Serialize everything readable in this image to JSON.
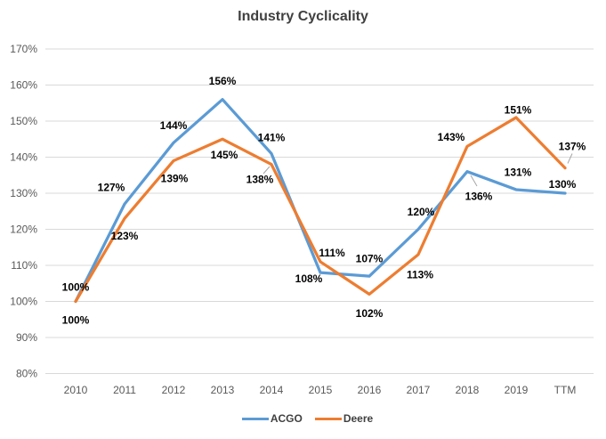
{
  "chart_data": {
    "type": "line",
    "title": "Industry Cyclicality",
    "categories": [
      "2010",
      "2011",
      "2012",
      "2013",
      "2014",
      "2015",
      "2016",
      "2017",
      "2018",
      "2019",
      "TTM"
    ],
    "series": [
      {
        "name": "ACGO",
        "color": "#5B9BD5",
        "values": [
          100,
          127,
          144,
          156,
          141,
          108,
          107,
          120,
          136,
          131,
          130
        ]
      },
      {
        "name": "Deere",
        "color": "#ED7D31",
        "values": [
          100,
          123,
          139,
          145,
          138,
          111,
          102,
          113,
          143,
          151,
          137
        ]
      }
    ],
    "ylim": [
      80,
      170
    ],
    "ytick_step": 10,
    "ytick_labels": [
      "170%",
      "160%",
      "150%",
      "140%",
      "130%",
      "120%",
      "110%",
      "100%",
      "90%",
      "80%"
    ],
    "tick_suffix": "%",
    "data_label_suffix": "%",
    "grid": true,
    "legend_position": "bottom",
    "styles": {
      "title_color": "#404040",
      "tick_color": "#595959",
      "data_label_color": "#000000",
      "gridline_color": "#D9D9D9",
      "leader_line_color": "#A6A6A6",
      "background": "#FFFFFF"
    }
  }
}
